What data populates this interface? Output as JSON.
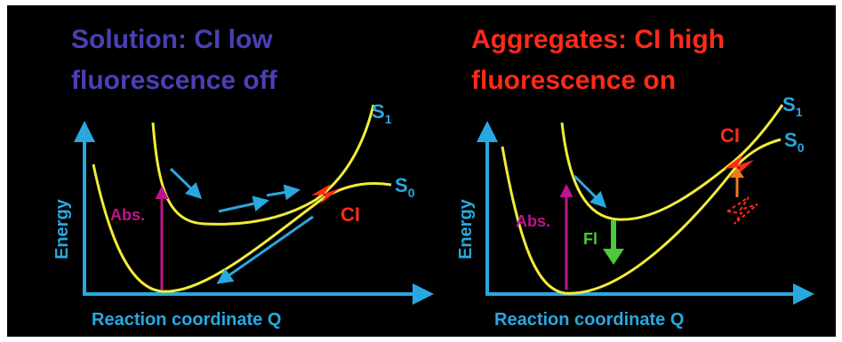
{
  "colors": {
    "background": "#000000",
    "title_left": "#4a40b4",
    "title_right": "#ff2a1a",
    "axis": "#29a8e0",
    "curve": "#f2ec38",
    "absorption": "#c0148c",
    "ci_label": "#ff2a1a",
    "state_label": "#29a8e0",
    "fl": "#4cc93a",
    "orange": "#f07a22"
  },
  "left_panel": {
    "title_line1": "Solution: CI low",
    "title_line2": "fluorescence off",
    "ylabel": "Energy",
    "xlabel": "Reaction coordinate Q",
    "s1_label": "S",
    "s1_sub": "1",
    "s0_label": "S",
    "s0_sub": "0",
    "abs_label": "Abs.",
    "ci_label": "CI"
  },
  "right_panel": {
    "title_line1": "Aggregates: CI high",
    "title_line2": "fluorescence on",
    "ylabel": "Energy",
    "xlabel": "Reaction coordinate Q",
    "s1_label": "S",
    "s1_sub": "1",
    "s0_label": "S",
    "s0_sub": "0",
    "abs_label": "Abs.",
    "fl_label": "Fl",
    "ci_label": "CI"
  }
}
